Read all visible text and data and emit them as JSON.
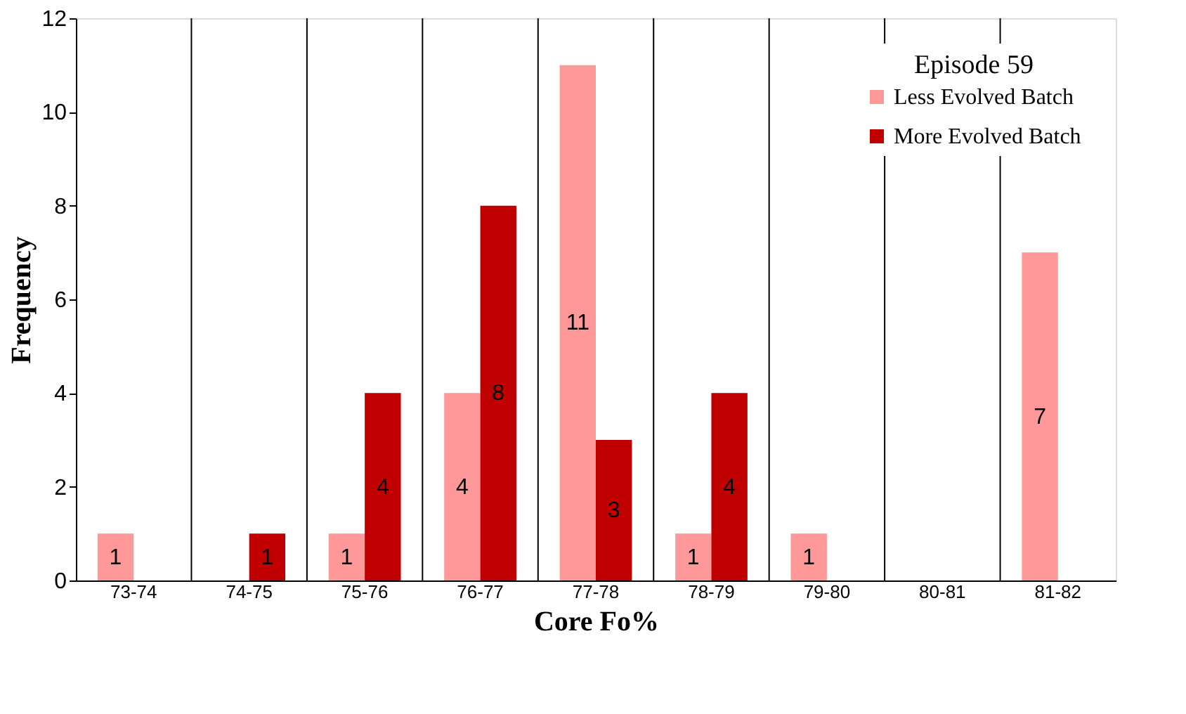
{
  "chart_data": {
    "type": "bar",
    "xlabel": "Core Fo%",
    "ylabel": "Frequency",
    "legend_title": "Episode 59",
    "legend": "top right",
    "grid": "x",
    "categories": [
      "73-74",
      "74-75",
      "75-76",
      "76-77",
      "77-78",
      "78-79",
      "79-80",
      "80-81",
      "81-82"
    ],
    "ylim": [
      0,
      12
    ],
    "yticks": [
      0,
      2,
      4,
      6,
      8,
      10,
      12
    ],
    "series": [
      {
        "name": "Less Evolved Batch",
        "color": "#ff9999",
        "values": [
          1,
          0,
          1,
          4,
          11,
          1,
          1,
          0,
          7
        ],
        "value_labels": [
          "1",
          null,
          "1",
          "4",
          "11",
          "1",
          "1",
          null,
          "7"
        ]
      },
      {
        "name": "More Evolved Batch",
        "color": "#c00000",
        "values": [
          0,
          1,
          4,
          8,
          3,
          4,
          0,
          0,
          0
        ],
        "value_labels": [
          null,
          "1",
          "4",
          "8",
          "3",
          "4",
          null,
          null,
          null
        ]
      }
    ]
  }
}
